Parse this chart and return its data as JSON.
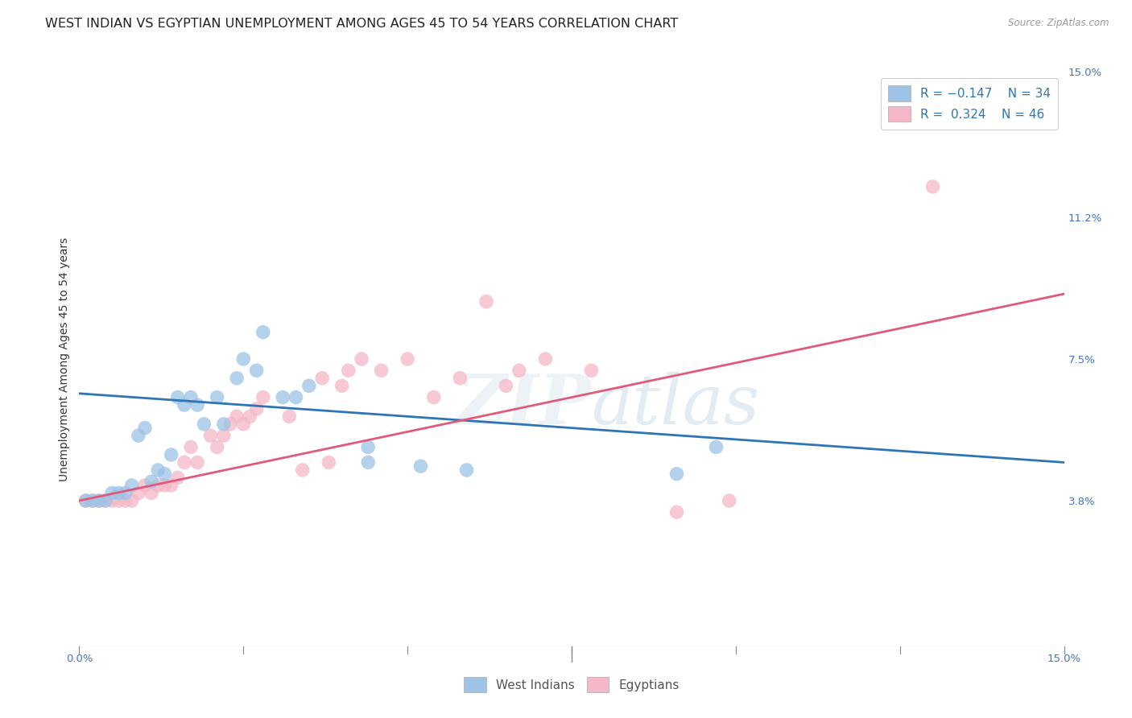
{
  "title": "WEST INDIAN VS EGYPTIAN UNEMPLOYMENT AMONG AGES 45 TO 54 YEARS CORRELATION CHART",
  "source": "Source: ZipAtlas.com",
  "ylabel": "Unemployment Among Ages 45 to 54 years",
  "xlim": [
    0.0,
    0.15
  ],
  "ylim": [
    0.0,
    0.15
  ],
  "y_tick_right_labels": [
    "",
    "3.8%",
    "7.5%",
    "11.2%",
    "15.0%"
  ],
  "y_tick_right_values": [
    0.0,
    0.038,
    0.075,
    0.112,
    0.15
  ],
  "blue_color": "#9dc3e6",
  "pink_color": "#f4b8c8",
  "blue_line_color": "#2e75b6",
  "pink_line_color": "#e05a7a",
  "background_color": "#ffffff",
  "grid_color": "#c8c8c8",
  "west_indians_x": [
    0.001,
    0.002,
    0.003,
    0.004,
    0.005,
    0.006,
    0.007,
    0.008,
    0.009,
    0.01,
    0.011,
    0.012,
    0.013,
    0.014,
    0.015,
    0.016,
    0.017,
    0.018,
    0.019,
    0.021,
    0.022,
    0.024,
    0.025,
    0.027,
    0.028,
    0.031,
    0.033,
    0.035,
    0.044,
    0.044,
    0.052,
    0.059,
    0.091,
    0.097
  ],
  "west_indians_y": [
    0.038,
    0.038,
    0.038,
    0.038,
    0.04,
    0.04,
    0.04,
    0.042,
    0.055,
    0.057,
    0.043,
    0.046,
    0.045,
    0.05,
    0.065,
    0.063,
    0.065,
    0.063,
    0.058,
    0.065,
    0.058,
    0.07,
    0.075,
    0.072,
    0.082,
    0.065,
    0.065,
    0.068,
    0.048,
    0.052,
    0.047,
    0.046,
    0.045,
    0.052
  ],
  "egyptians_x": [
    0.001,
    0.002,
    0.003,
    0.004,
    0.005,
    0.006,
    0.007,
    0.008,
    0.009,
    0.01,
    0.011,
    0.012,
    0.013,
    0.014,
    0.015,
    0.016,
    0.017,
    0.018,
    0.02,
    0.021,
    0.022,
    0.023,
    0.024,
    0.025,
    0.026,
    0.027,
    0.028,
    0.032,
    0.034,
    0.037,
    0.038,
    0.04,
    0.041,
    0.043,
    0.046,
    0.05,
    0.054,
    0.058,
    0.062,
    0.065,
    0.067,
    0.071,
    0.078,
    0.091,
    0.099,
    0.13
  ],
  "egyptians_y": [
    0.038,
    0.038,
    0.038,
    0.038,
    0.038,
    0.038,
    0.038,
    0.038,
    0.04,
    0.042,
    0.04,
    0.042,
    0.042,
    0.042,
    0.044,
    0.048,
    0.052,
    0.048,
    0.055,
    0.052,
    0.055,
    0.058,
    0.06,
    0.058,
    0.06,
    0.062,
    0.065,
    0.06,
    0.046,
    0.07,
    0.048,
    0.068,
    0.072,
    0.075,
    0.072,
    0.075,
    0.065,
    0.07,
    0.09,
    0.068,
    0.072,
    0.075,
    0.072,
    0.035,
    0.038,
    0.12
  ],
  "wi_line_x0": 0.0,
  "wi_line_y0": 0.066,
  "wi_line_x1": 0.15,
  "wi_line_y1": 0.048,
  "eg_line_x0": 0.0,
  "eg_line_y0": 0.038,
  "eg_line_x1": 0.15,
  "eg_line_y1": 0.092,
  "title_fontsize": 11.5,
  "axis_label_fontsize": 10,
  "tick_fontsize": 9.5,
  "legend_fontsize": 11
}
